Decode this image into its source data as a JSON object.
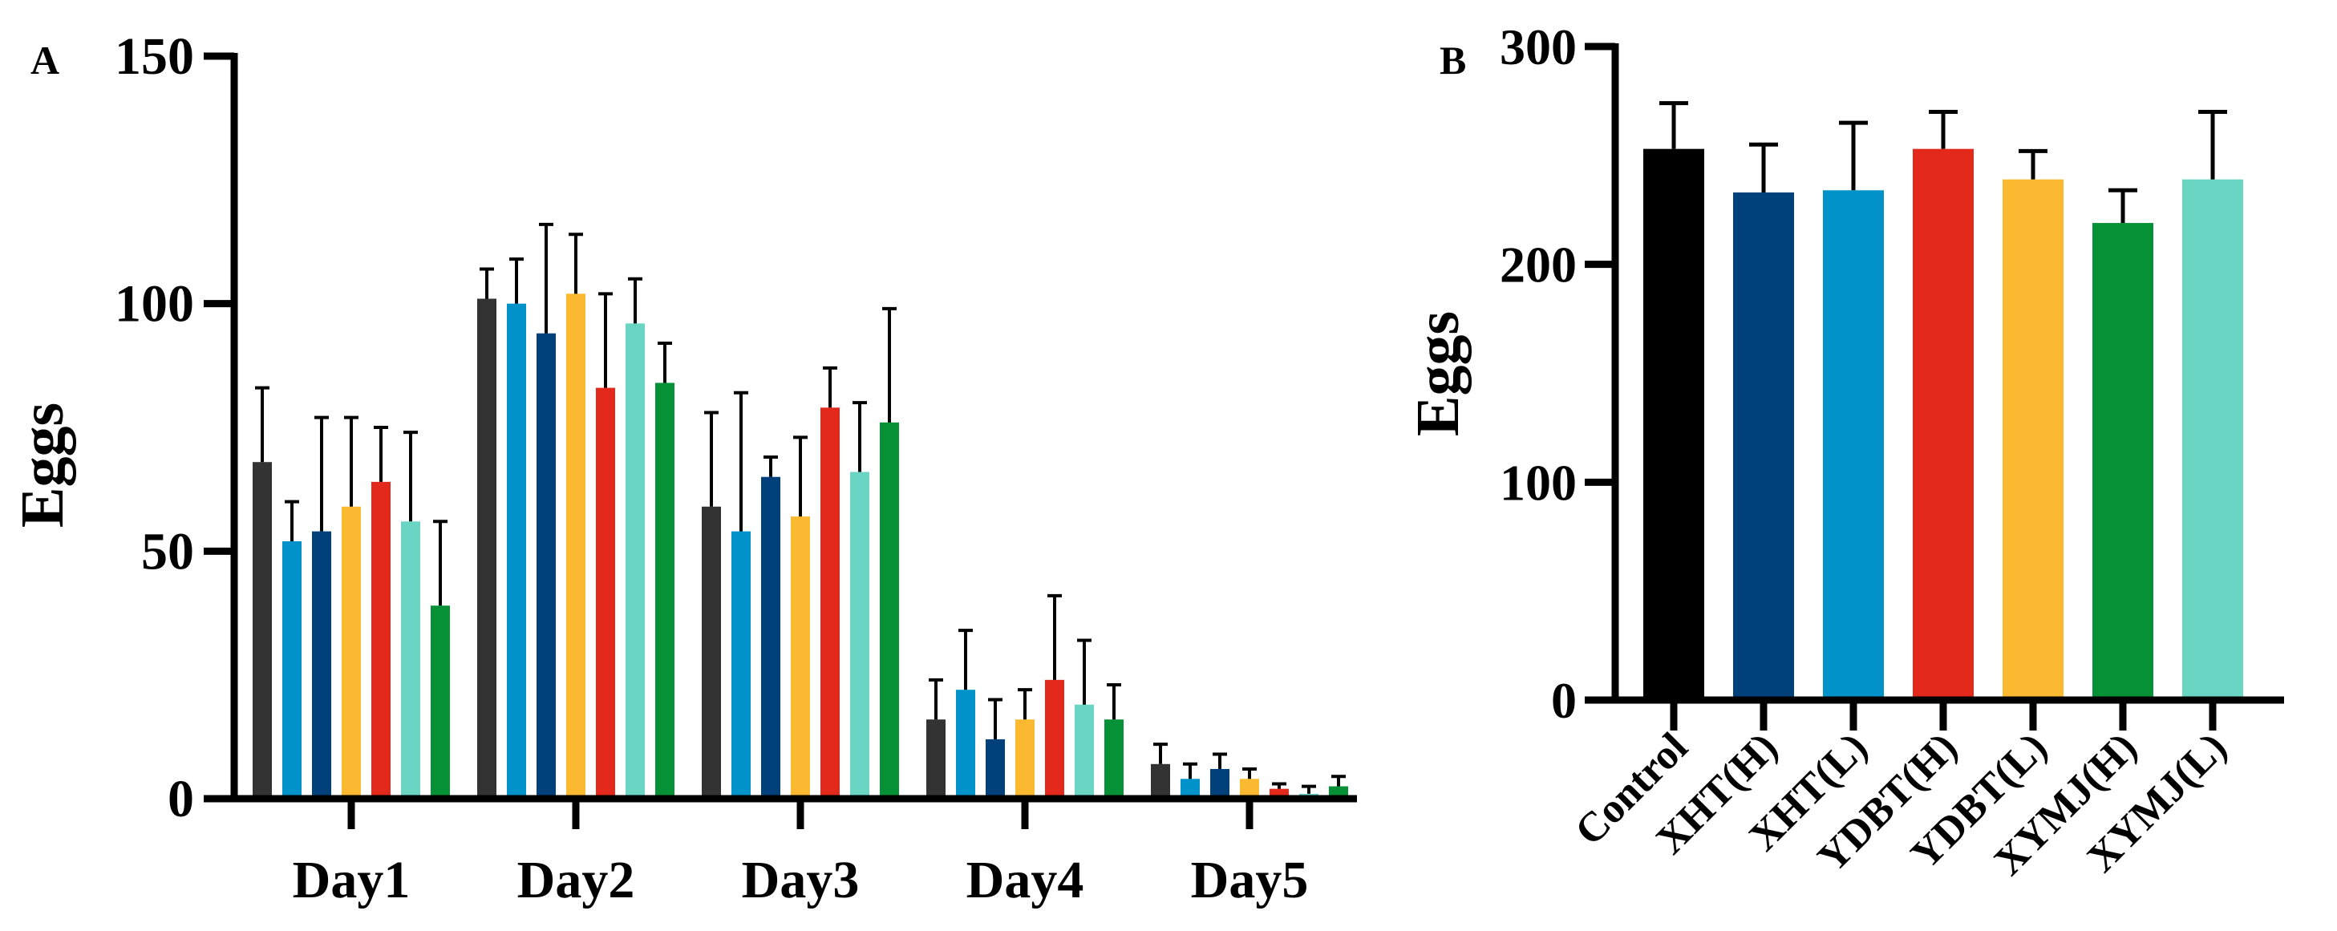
{
  "chart_data": [
    {
      "panel_label": "A",
      "type": "bar",
      "title": "",
      "xlabel": "",
      "ylabel": "Eggs",
      "ylim": [
        0,
        150
      ],
      "yticks": [
        0,
        50,
        100,
        150
      ],
      "categories": [
        "Day1",
        "Day2",
        "Day3",
        "Day4",
        "Day5"
      ],
      "error_bars": "upper",
      "series": [
        {
          "name": "Control",
          "color": "#333333",
          "values": [
            68,
            101,
            59,
            16,
            7
          ],
          "errors": [
            15,
            6,
            19,
            8,
            4
          ]
        },
        {
          "name": "XHT(L)",
          "color": "#0092c8",
          "values": [
            52,
            100,
            54,
            22,
            4
          ],
          "errors": [
            8,
            9,
            28,
            12,
            3
          ]
        },
        {
          "name": "XHT(H)",
          "color": "#00417c",
          "values": [
            54,
            94,
            65,
            12,
            6
          ],
          "errors": [
            23,
            22,
            4,
            8,
            3
          ]
        },
        {
          "name": "YDBT(L)",
          "color": "#fbb831",
          "values": [
            59,
            102,
            57,
            16,
            4
          ],
          "errors": [
            18,
            12,
            16,
            6,
            2
          ]
        },
        {
          "name": "YDBT(H)",
          "color": "#e3291c",
          "values": [
            64,
            83,
            79,
            24,
            2
          ],
          "errors": [
            11,
            19,
            8,
            17,
            1
          ]
        },
        {
          "name": "XYMJ(L)",
          "color": "#6bd5c3",
          "values": [
            56,
            96,
            66,
            19,
            1
          ],
          "errors": [
            18,
            9,
            14,
            13,
            1.5
          ]
        },
        {
          "name": "XYMJ(H)",
          "color": "#069137",
          "values": [
            39,
            84,
            76,
            16,
            2.5
          ],
          "errors": [
            17,
            8,
            23,
            7,
            2
          ]
        }
      ]
    },
    {
      "panel_label": "B",
      "type": "bar",
      "title": "",
      "xlabel": "",
      "ylabel": "Eggs",
      "ylim": [
        0,
        300
      ],
      "yticks": [
        0,
        100,
        200,
        300
      ],
      "categories": [
        "Control",
        "XHT(H)",
        "XHT(L)",
        "YDBT(H)",
        "YDBT(L)",
        "XYMJ(H)",
        "XYMJ(L)"
      ],
      "colors": [
        "#000000",
        "#00417c",
        "#0092c8",
        "#e3291c",
        "#fbb831",
        "#069137",
        "#6bd5c3"
      ],
      "values": [
        253,
        233,
        234,
        253,
        239,
        219,
        239
      ],
      "errors": [
        21,
        22,
        31,
        17,
        13,
        15,
        31
      ],
      "error_bars": "upper"
    }
  ]
}
